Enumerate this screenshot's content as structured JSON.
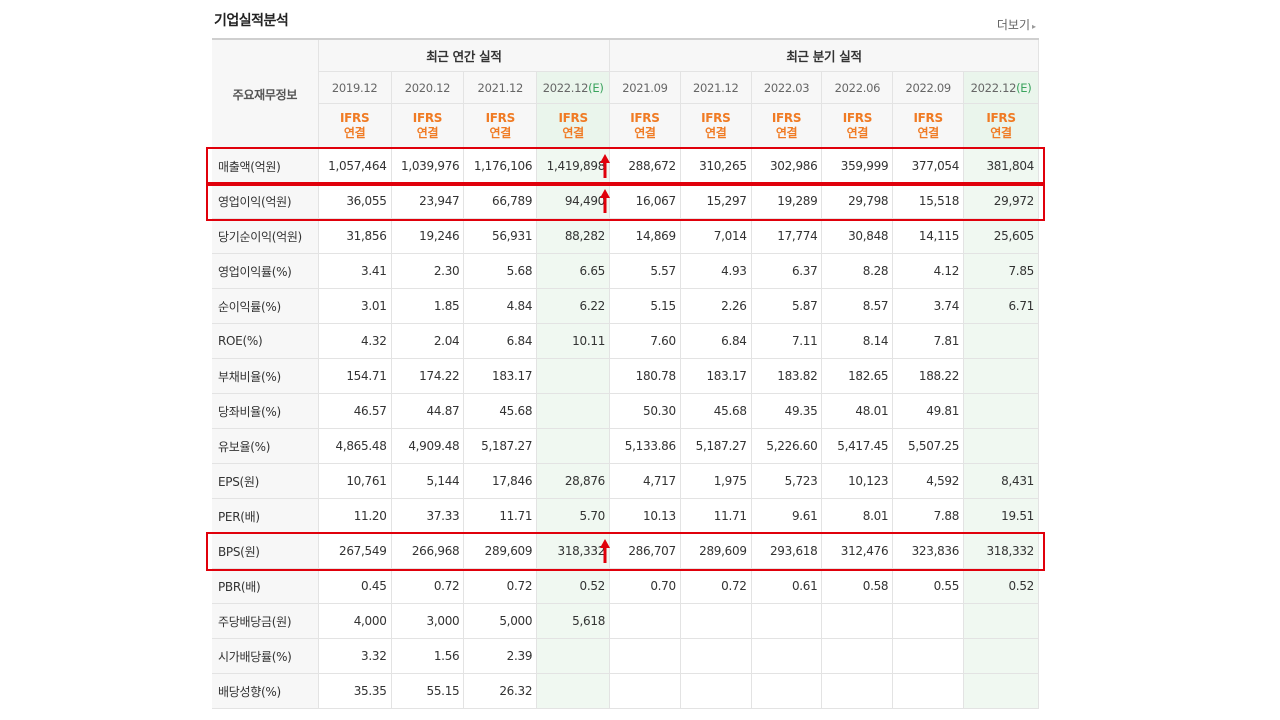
{
  "section_title": "기업실적분석",
  "more_label": "더보기",
  "more_arrow": "▸",
  "header": {
    "row_label": "주요재무정보",
    "annual_group": "최근 연간 실적",
    "quarterly_group": "최근 분기 실적",
    "annual_periods": [
      {
        "date": "2019.12",
        "est": ""
      },
      {
        "date": "2020.12",
        "est": ""
      },
      {
        "date": "2021.12",
        "est": ""
      },
      {
        "date": "2022.12",
        "est": "(E)"
      }
    ],
    "quarterly_periods": [
      {
        "date": "2021.09",
        "est": ""
      },
      {
        "date": "2021.12",
        "est": ""
      },
      {
        "date": "2022.03",
        "est": ""
      },
      {
        "date": "2022.06",
        "est": ""
      },
      {
        "date": "2022.09",
        "est": ""
      },
      {
        "date": "2022.12",
        "est": "(E)"
      }
    ],
    "ifrs_line1": "IFRS",
    "ifrs_line2": "연결"
  },
  "rows": [
    {
      "label": "매출액(억원)",
      "annual": [
        "1,057,464",
        "1,039,976",
        "1,176,106",
        "1,419,898"
      ],
      "quarterly": [
        "288,672",
        "310,265",
        "302,986",
        "359,999",
        "377,054",
        "381,804"
      ]
    },
    {
      "label": "영업이익(억원)",
      "annual": [
        "36,055",
        "23,947",
        "66,789",
        "94,490"
      ],
      "quarterly": [
        "16,067",
        "15,297",
        "19,289",
        "29,798",
        "15,518",
        "29,972"
      ]
    },
    {
      "label": "당기순이익(억원)",
      "annual": [
        "31,856",
        "19,246",
        "56,931",
        "88,282"
      ],
      "quarterly": [
        "14,869",
        "7,014",
        "17,774",
        "30,848",
        "14,115",
        "25,605"
      ]
    },
    {
      "label": "영업이익률(%)",
      "annual": [
        "3.41",
        "2.30",
        "5.68",
        "6.65"
      ],
      "quarterly": [
        "5.57",
        "4.93",
        "6.37",
        "8.28",
        "4.12",
        "7.85"
      ]
    },
    {
      "label": "순이익률(%)",
      "annual": [
        "3.01",
        "1.85",
        "4.84",
        "6.22"
      ],
      "quarterly": [
        "5.15",
        "2.26",
        "5.87",
        "8.57",
        "3.74",
        "6.71"
      ]
    },
    {
      "label": "ROE(%)",
      "annual": [
        "4.32",
        "2.04",
        "6.84",
        "10.11"
      ],
      "quarterly": [
        "7.60",
        "6.84",
        "7.11",
        "8.14",
        "7.81",
        ""
      ]
    },
    {
      "label": "부채비율(%)",
      "annual": [
        "154.71",
        "174.22",
        "183.17",
        ""
      ],
      "quarterly": [
        "180.78",
        "183.17",
        "183.82",
        "182.65",
        "188.22",
        ""
      ]
    },
    {
      "label": "당좌비율(%)",
      "annual": [
        "46.57",
        "44.87",
        "45.68",
        ""
      ],
      "quarterly": [
        "50.30",
        "45.68",
        "49.35",
        "48.01",
        "49.81",
        ""
      ]
    },
    {
      "label": "유보율(%)",
      "annual": [
        "4,865.48",
        "4,909.48",
        "5,187.27",
        ""
      ],
      "quarterly": [
        "5,133.86",
        "5,187.27",
        "5,226.60",
        "5,417.45",
        "5,507.25",
        ""
      ]
    },
    {
      "label": "EPS(원)",
      "annual": [
        "10,761",
        "5,144",
        "17,846",
        "28,876"
      ],
      "quarterly": [
        "4,717",
        "1,975",
        "5,723",
        "10,123",
        "4,592",
        "8,431"
      ]
    },
    {
      "label": "PER(배)",
      "annual": [
        "11.20",
        "37.33",
        "11.71",
        "5.70"
      ],
      "quarterly": [
        "10.13",
        "11.71",
        "9.61",
        "8.01",
        "7.88",
        "19.51"
      ]
    },
    {
      "label": "BPS(원)",
      "annual": [
        "267,549",
        "266,968",
        "289,609",
        "318,332"
      ],
      "quarterly": [
        "286,707",
        "289,609",
        "293,618",
        "312,476",
        "323,836",
        "318,332"
      ]
    },
    {
      "label": "PBR(배)",
      "annual": [
        "0.45",
        "0.72",
        "0.72",
        "0.52"
      ],
      "quarterly": [
        "0.70",
        "0.72",
        "0.61",
        "0.58",
        "0.55",
        "0.52"
      ]
    },
    {
      "label": "주당배당금(원)",
      "annual": [
        "4,000",
        "3,000",
        "5,000",
        "5,618"
      ],
      "quarterly": [
        "",
        "",
        "",
        "",
        "",
        ""
      ]
    },
    {
      "label": "시가배당률(%)",
      "annual": [
        "3.32",
        "1.56",
        "2.39",
        ""
      ],
      "quarterly": [
        "",
        "",
        "",
        "",
        "",
        ""
      ]
    },
    {
      "label": "배당성향(%)",
      "annual": [
        "35.35",
        "55.15",
        "26.32",
        ""
      ],
      "quarterly": [
        "",
        "",
        "",
        "",
        "",
        ""
      ]
    }
  ],
  "group_separators_before": [
    "당기순이익(억원)",
    "부채비율(%)",
    "EPS(원)",
    "PBR(배)",
    "주당배당금(원)"
  ],
  "highlighted_rows": [
    "매출액(억원)",
    "영업이익(억원)",
    "BPS(원)"
  ],
  "annotation_arrow_symbol": "↑",
  "colors": {
    "highlight": "#e0000b",
    "ifrs": "#f07b24",
    "estimate_marker": "#3aa35d",
    "estimate_bg": "#f0f8f1"
  }
}
